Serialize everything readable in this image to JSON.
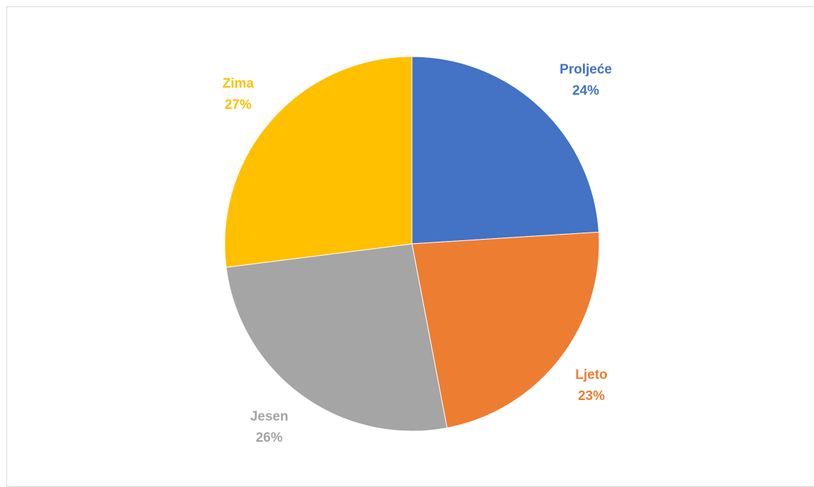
{
  "chart_data": {
    "type": "pie",
    "title": "",
    "categories": [
      "Proljeće",
      "Ljeto",
      "Jesen",
      "Zima"
    ],
    "values": [
      24,
      23,
      26,
      27
    ],
    "value_labels": [
      "24%",
      "23%",
      "26%",
      "27%"
    ],
    "colors": [
      "#4472C4",
      "#ED7D31",
      "#A5A5A5",
      "#FFC000"
    ],
    "start_angle_deg": 0,
    "direction": "clockwise",
    "legend": "none",
    "data_labels": "category-and-percent, outside, colored like slice"
  }
}
